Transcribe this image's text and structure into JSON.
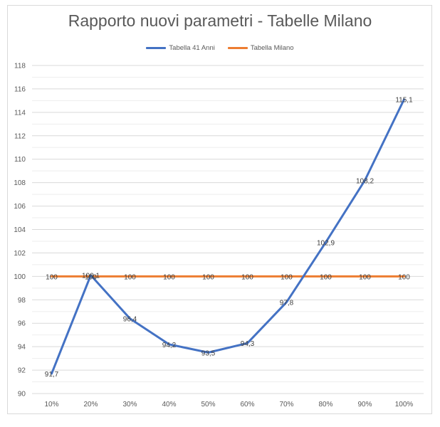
{
  "chart_data": {
    "type": "line",
    "title": "Rapporto nuovi parametri - Tabelle Milano",
    "categories": [
      "10%",
      "20%",
      "30%",
      "40%",
      "50%",
      "60%",
      "70%",
      "80%",
      "90%",
      "100%"
    ],
    "series": [
      {
        "name": "Tabella 41 Anni",
        "color": "#4472c4",
        "values": [
          91.7,
          100.1,
          96.4,
          94.2,
          93.5,
          94.3,
          97.8,
          102.9,
          108.2,
          115.1
        ],
        "labels": [
          "91,7",
          "100,1",
          "96,4",
          "94,2",
          "93,5",
          "94,3",
          "97,8",
          "102,9",
          "108,2",
          "115,1"
        ]
      },
      {
        "name": "Tabella Milano",
        "color": "#ed7d31",
        "values": [
          100,
          100,
          100,
          100,
          100,
          100,
          100,
          100,
          100,
          100
        ],
        "labels": [
          "100",
          "100",
          "100",
          "100",
          "100",
          "100",
          "100",
          "100",
          "100",
          "100"
        ]
      }
    ],
    "ylim": [
      90,
      118
    ],
    "y_ticks": [
      "90",
      "92",
      "94",
      "96",
      "98",
      "100",
      "102",
      "104",
      "106",
      "108",
      "110",
      "112",
      "114",
      "116",
      "118"
    ],
    "grid": true,
    "legend_position": "top"
  }
}
